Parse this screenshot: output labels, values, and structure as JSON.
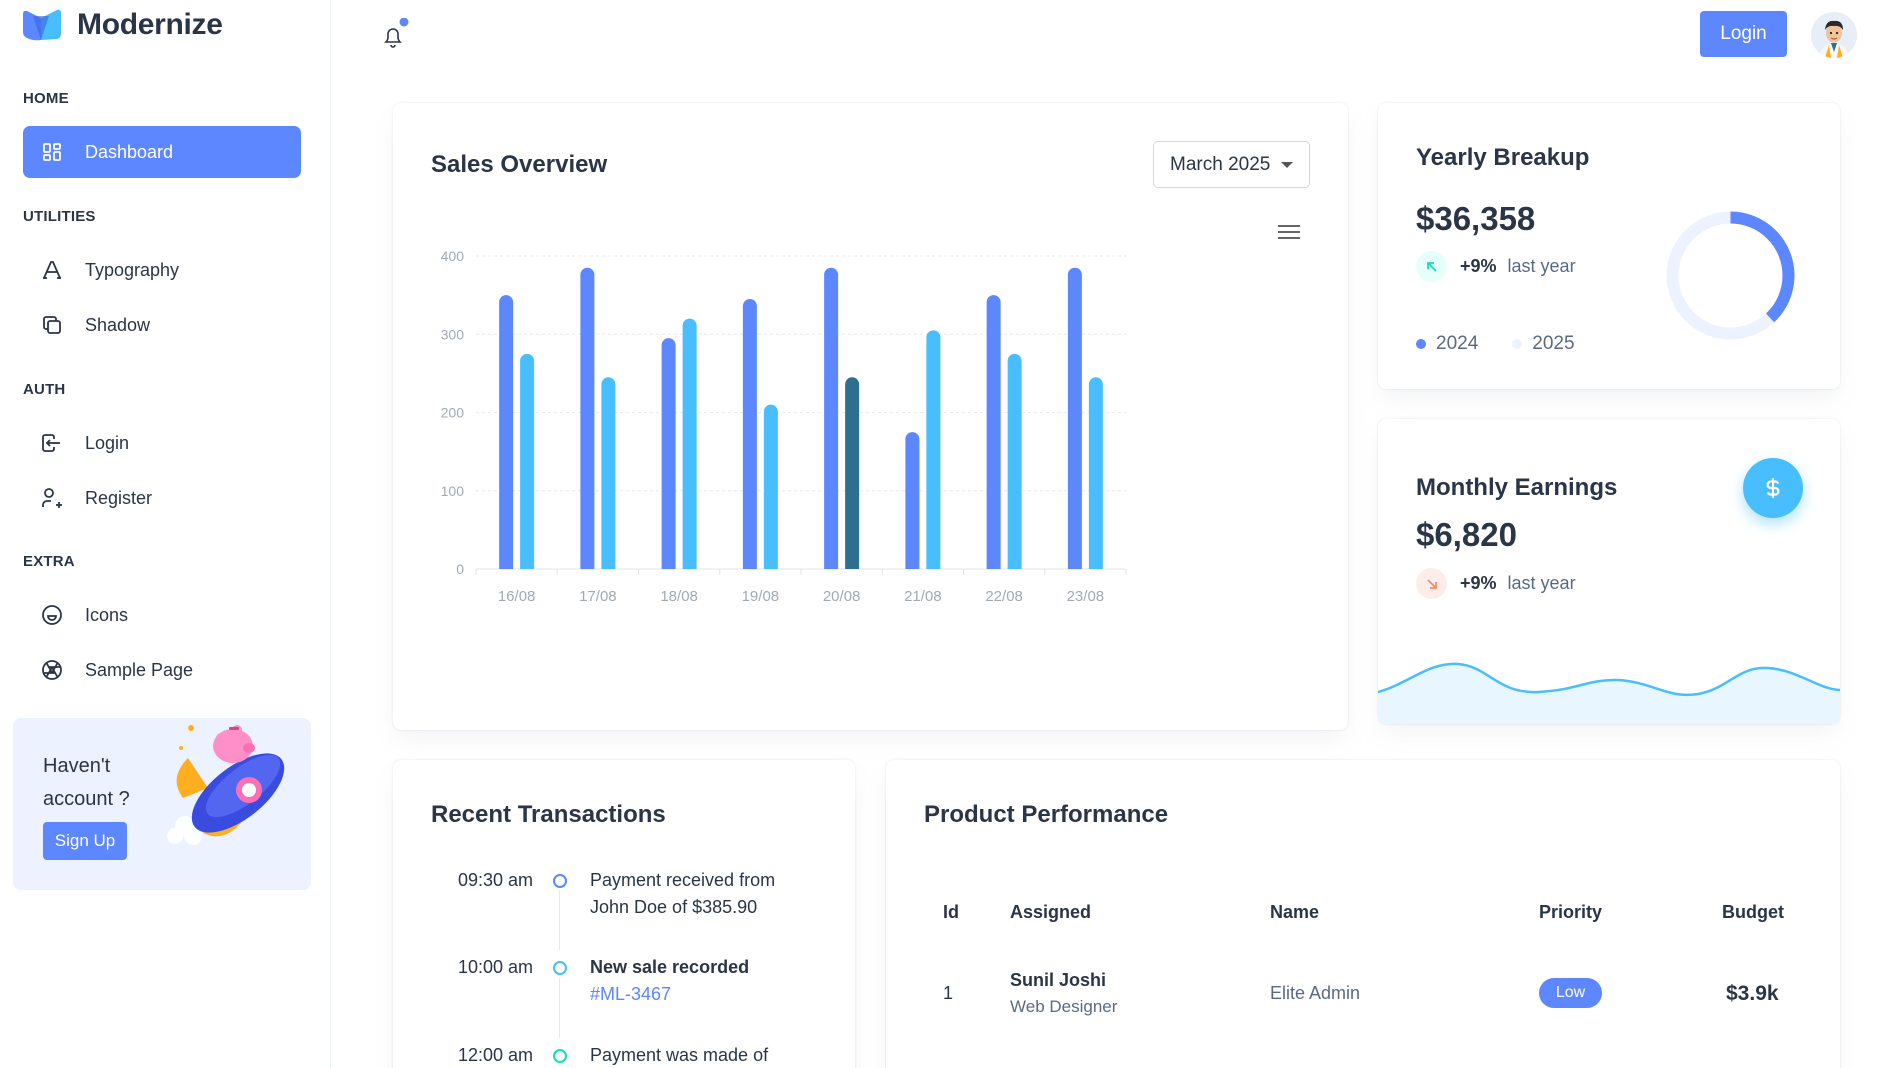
{
  "brand": {
    "name": "Modernize"
  },
  "sidebar": {
    "sections": [
      {
        "caption": "HOME",
        "items": [
          {
            "label": "Dashboard",
            "icon": "layout-dashboard-icon",
            "active": true
          }
        ]
      },
      {
        "caption": "UTILITIES",
        "items": [
          {
            "label": "Typography",
            "icon": "typography-icon"
          },
          {
            "label": "Shadow",
            "icon": "copy-icon"
          }
        ]
      },
      {
        "caption": "AUTH",
        "items": [
          {
            "label": "Login",
            "icon": "login-icon"
          },
          {
            "label": "Register",
            "icon": "user-plus-icon"
          }
        ]
      },
      {
        "caption": "EXTRA",
        "items": [
          {
            "label": "Icons",
            "icon": "mood-happy-icon"
          },
          {
            "label": "Sample Page",
            "icon": "aperture-icon"
          }
        ]
      }
    ],
    "promo": {
      "text": "Haven't account ?",
      "button": "Sign Up"
    }
  },
  "header": {
    "login_button": "Login"
  },
  "sales_overview": {
    "title": "Sales Overview",
    "month_select": "March 2025"
  },
  "chart_data": {
    "type": "bar",
    "categories": [
      "16/08",
      "17/08",
      "18/08",
      "19/08",
      "20/08",
      "21/08",
      "22/08",
      "23/08"
    ],
    "series": [
      {
        "values": [
          350,
          385,
          295,
          345,
          385,
          175,
          350,
          385
        ],
        "color": "#5D87FF"
      },
      {
        "values": [
          275,
          245,
          320,
          210,
          245,
          305,
          275,
          245
        ],
        "color": "#49BEFF"
      }
    ],
    "highlight": {
      "category_index": 4,
      "series_index": 1,
      "color": "#2E6E8E"
    },
    "yticks": [
      0,
      100,
      200,
      300,
      400
    ],
    "ylim": [
      0,
      400
    ],
    "grid": true,
    "title": "",
    "xlabel": "",
    "ylabel": ""
  },
  "yearly_breakup": {
    "title": "Yearly Breakup",
    "amount": "$36,358",
    "trend_pct": "+9%",
    "trend_label": "last year",
    "legend": [
      {
        "label": "2024",
        "color": "#5D87FF"
      },
      {
        "label": "2025",
        "color": "#ECF2FF"
      }
    ],
    "donut_fraction": 0.38
  },
  "monthly_earnings": {
    "title": "Monthly Earnings",
    "amount": "$6,820",
    "trend_pct": "+9%",
    "trend_label": "last year",
    "button_icon": "currency-dollar-icon"
  },
  "recent_transactions": {
    "title": "Recent Transactions",
    "items": [
      {
        "time": "09:30 am",
        "text": "Payment received from John Doe of $385.90",
        "dot_color": "#5D87FF"
      },
      {
        "time": "10:00 am",
        "text": "New sale recorded",
        "link": "#ML-3467",
        "dot_color": "#49BEFF"
      },
      {
        "time": "12:00 am",
        "text": "Payment was made of",
        "dot_color": "#13DEB9"
      }
    ]
  },
  "product_performance": {
    "title": "Product Performance",
    "columns": [
      "Id",
      "Assigned",
      "Name",
      "Priority",
      "Budget"
    ],
    "rows": [
      {
        "id": "1",
        "assigned": "Sunil Joshi",
        "role": "Web Designer",
        "name": "Elite Admin",
        "priority": "Low",
        "budget": "$3.9k"
      }
    ]
  }
}
